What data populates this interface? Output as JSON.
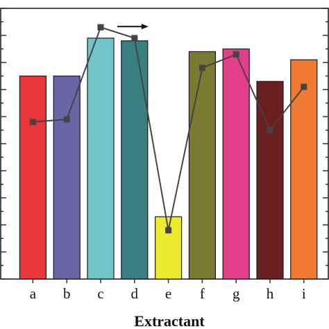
{
  "chart_data": {
    "type": "bar",
    "xlabel": "Extractant",
    "categories": [
      "a",
      "b",
      "c",
      "d",
      "e",
      "f",
      "g",
      "h",
      "i"
    ],
    "series": [
      {
        "values": [
          7.5,
          7.5,
          8.9,
          8.8,
          2.3,
          8.4,
          8.5,
          7.3,
          8.1
        ],
        "colors": [
          "#e8373a",
          "#6b64a5",
          "#73c3cb",
          "#3a7f7f",
          "#eeea2e",
          "#7b7a31",
          "#e2408a",
          "#6b2020",
          "#f07a34"
        ]
      },
      {
        "type": "line",
        "values": [
          5.8,
          5.9,
          9.3,
          8.9,
          1.8,
          7.8,
          8.3,
          5.5,
          7.1
        ],
        "color": "#444444"
      }
    ],
    "ylim": [
      0,
      10
    ],
    "annotation": "arrow-right"
  }
}
